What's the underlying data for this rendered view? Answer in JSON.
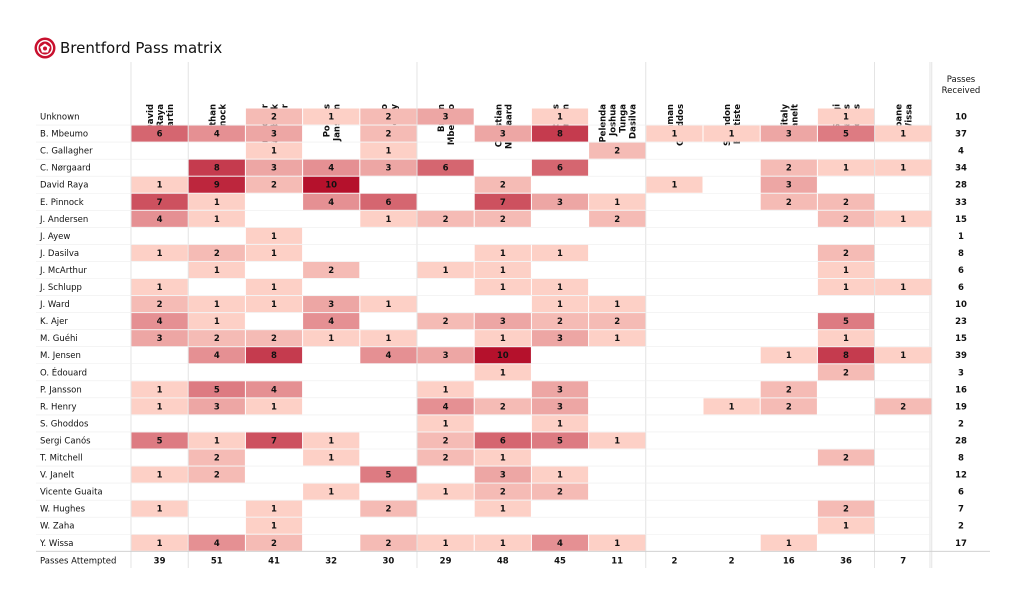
{
  "title": "Brentford Pass matrix",
  "colors": {
    "low": "#fdd0c6",
    "high": "#b5112c",
    "text": "#111111",
    "grid": "#dddddd"
  },
  "chart_data": {
    "type": "heatmap",
    "title": "Brentford Pass matrix",
    "columns": [
      "David Raya Martin",
      "Ethan Pinnock",
      "Kristoffer Vassbakk Ajer",
      "Pontus Jansson",
      "Rico Henry",
      "Bryan Mbeumo",
      "Christian Nørgaard",
      "Mathias Jensen",
      "Pelenda Joshua Tunga Dasilva",
      "Saman Ghoddos",
      "Shandon Baptiste",
      "Vitaly Janelt",
      "Sergi Canós Tenes",
      "Yoane Wissa"
    ],
    "column_labels": [
      [
        "David",
        "Raya",
        "Martin"
      ],
      [
        "Ethan",
        "Pinnock"
      ],
      [
        "Kristoffer",
        "Vassbakk",
        "Ajer"
      ],
      [
        "Pontus",
        "Jansson"
      ],
      [
        "Rico",
        "Henry"
      ],
      [
        "Bryan",
        "Mbeumo"
      ],
      [
        "Christian",
        "Nørgaard"
      ],
      [
        "Mathias",
        "Jensen"
      ],
      [
        "Pelenda",
        "Joshua",
        "Tunga",
        "Dasilva"
      ],
      [
        "Saman",
        "Ghoddos"
      ],
      [
        "Shandon",
        "Baptiste"
      ],
      [
        "Vitaly",
        "Janelt"
      ],
      [
        "Sergi",
        "Canós",
        "Tenes"
      ],
      [
        "Yoane",
        "Wissa"
      ]
    ],
    "received_header": [
      "Passes",
      "Received"
    ],
    "rows": [
      "Unknown",
      "B. Mbeumo",
      "C. Gallagher",
      "C. Nørgaard",
      "David Raya",
      "E. Pinnock",
      "J. Andersen",
      "J. Ayew",
      "J. Dasilva",
      "J. McArthur",
      "J. Schlupp",
      "J. Ward",
      "K. Ajer",
      "M. Guéhi",
      "M. Jensen",
      "O. Édouard",
      "P. Jansson",
      "R. Henry",
      "S. Ghoddos",
      "Sergi Canós",
      "T. Mitchell",
      "V. Janelt",
      "Vicente Guaita",
      "W. Hughes",
      "W. Zaha",
      "Y. Wissa"
    ],
    "values": [
      [
        0,
        0,
        2,
        1,
        2,
        3,
        0,
        1,
        0,
        0,
        0,
        0,
        1,
        0
      ],
      [
        6,
        4,
        3,
        0,
        2,
        0,
        3,
        8,
        0,
        1,
        1,
        3,
        5,
        1
      ],
      [
        0,
        0,
        1,
        0,
        1,
        0,
        0,
        0,
        2,
        0,
        0,
        0,
        0,
        0
      ],
      [
        0,
        8,
        3,
        4,
        3,
        6,
        0,
        6,
        0,
        0,
        0,
        2,
        1,
        1
      ],
      [
        1,
        9,
        2,
        10,
        0,
        0,
        2,
        0,
        0,
        1,
        0,
        3,
        0,
        0
      ],
      [
        7,
        1,
        0,
        4,
        6,
        0,
        7,
        3,
        1,
        0,
        0,
        2,
        2,
        0
      ],
      [
        4,
        1,
        0,
        0,
        1,
        2,
        2,
        0,
        2,
        0,
        0,
        0,
        2,
        1
      ],
      [
        0,
        0,
        1,
        0,
        0,
        0,
        0,
        0,
        0,
        0,
        0,
        0,
        0,
        0
      ],
      [
        1,
        2,
        1,
        0,
        0,
        0,
        1,
        1,
        0,
        0,
        0,
        0,
        2,
        0
      ],
      [
        0,
        1,
        0,
        2,
        0,
        1,
        1,
        0,
        0,
        0,
        0,
        0,
        1,
        0
      ],
      [
        1,
        0,
        1,
        0,
        0,
        0,
        1,
        1,
        0,
        0,
        0,
        0,
        1,
        1
      ],
      [
        2,
        1,
        1,
        3,
        1,
        0,
        0,
        1,
        1,
        0,
        0,
        0,
        0,
        0
      ],
      [
        4,
        1,
        0,
        4,
        0,
        2,
        3,
        2,
        2,
        0,
        0,
        0,
        5,
        0
      ],
      [
        3,
        2,
        2,
        1,
        1,
        0,
        1,
        3,
        1,
        0,
        0,
        0,
        1,
        0
      ],
      [
        0,
        4,
        8,
        0,
        4,
        3,
        10,
        0,
        0,
        0,
        0,
        1,
        8,
        1
      ],
      [
        0,
        0,
        0,
        0,
        0,
        0,
        1,
        0,
        0,
        0,
        0,
        0,
        2,
        0
      ],
      [
        1,
        5,
        4,
        0,
        0,
        1,
        0,
        3,
        0,
        0,
        0,
        2,
        0,
        0
      ],
      [
        1,
        3,
        1,
        0,
        0,
        4,
        2,
        3,
        0,
        0,
        1,
        2,
        0,
        2
      ],
      [
        0,
        0,
        0,
        0,
        0,
        1,
        0,
        1,
        0,
        0,
        0,
        0,
        0,
        0
      ],
      [
        5,
        1,
        7,
        1,
        0,
        2,
        6,
        5,
        1,
        0,
        0,
        0,
        0,
        0
      ],
      [
        0,
        2,
        0,
        1,
        0,
        2,
        1,
        0,
        0,
        0,
        0,
        0,
        2,
        0
      ],
      [
        1,
        2,
        0,
        0,
        5,
        0,
        3,
        1,
        0,
        0,
        0,
        0,
        0,
        0
      ],
      [
        0,
        0,
        0,
        1,
        0,
        1,
        2,
        2,
        0,
        0,
        0,
        0,
        0,
        0
      ],
      [
        1,
        0,
        1,
        0,
        2,
        0,
        1,
        0,
        0,
        0,
        0,
        0,
        2,
        0
      ],
      [
        0,
        0,
        1,
        0,
        0,
        0,
        0,
        0,
        0,
        0,
        0,
        0,
        1,
        0
      ],
      [
        1,
        4,
        2,
        0,
        2,
        1,
        1,
        4,
        1,
        0,
        0,
        1,
        0,
        0
      ]
    ],
    "passes_received": [
      "10",
      "37",
      "4",
      "34",
      "28",
      "33",
      "15",
      "1",
      "8",
      "6",
      "6",
      "10",
      "23",
      "15",
      "39",
      "3",
      "16",
      "19",
      "2",
      "28",
      "8",
      "12",
      "6",
      "7",
      "2",
      "17"
    ],
    "attempted_label": "Passes Attempted",
    "passes_attempted": [
      "39",
      "51",
      "41",
      "32",
      "30",
      "29",
      "48",
      "45",
      "11",
      "2",
      "2",
      "16",
      "36",
      "7"
    ],
    "value_range": [
      0,
      10
    ]
  }
}
